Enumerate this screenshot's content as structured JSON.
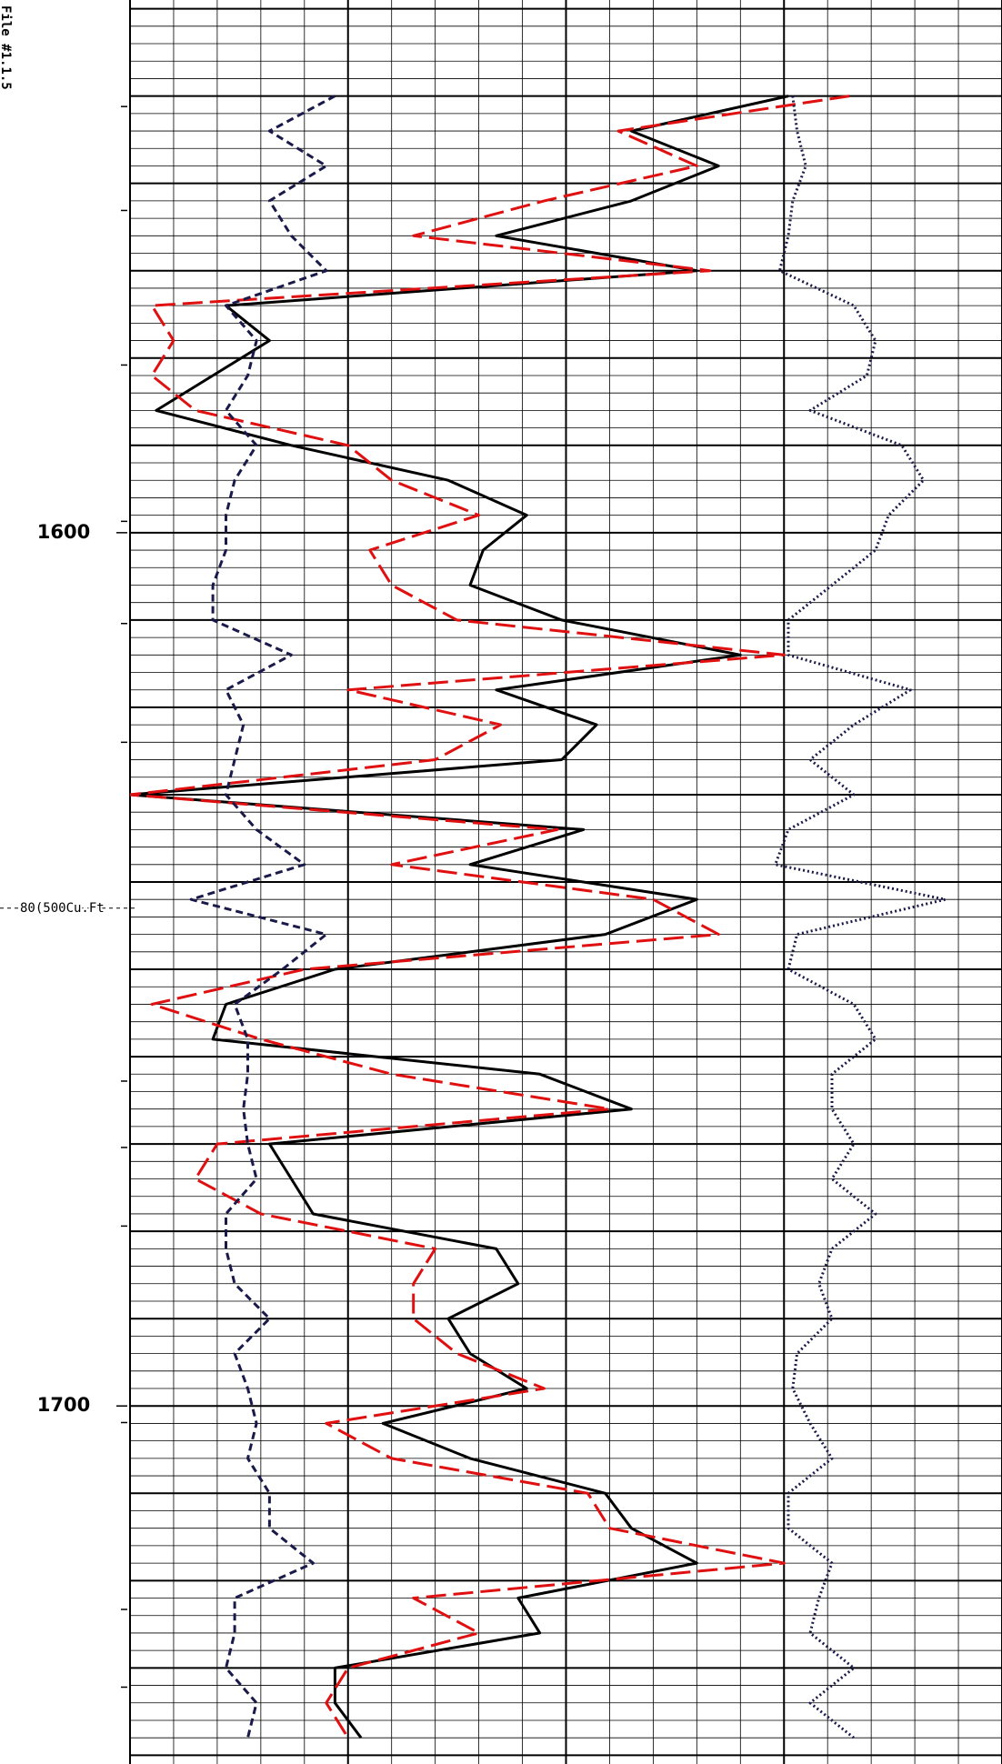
{
  "chart_data": {
    "type": "line",
    "title": "File #1.1.5",
    "ylim": [
      1539,
      1741
    ],
    "yticks": [
      1600,
      1700
    ],
    "xlim": [
      0,
      20
    ],
    "grid": true,
    "ygrid_minor": 2,
    "ygrid_major": 10,
    "xgrid_minor": 1,
    "xgrid_major": 5,
    "depth_marks": [
      1551.2,
      1563.1,
      1580.8,
      1598.7,
      1610.4,
      1624.0,
      1662.8,
      1670.4,
      1679.4,
      1701.9,
      1723.3,
      1732.2
    ],
    "annotation": {
      "text": "80(500Cu.Ft",
      "depth": 1643
    },
    "depth": [
      1550,
      1554,
      1558,
      1562,
      1566,
      1570,
      1574,
      1578,
      1582,
      1586,
      1590,
      1594,
      1598,
      1602,
      1606,
      1610,
      1614,
      1618,
      1622,
      1626,
      1630,
      1634,
      1638,
      1642,
      1646,
      1650,
      1654,
      1658,
      1662,
      1666,
      1670,
      1674,
      1678,
      1682,
      1686,
      1690,
      1694,
      1698,
      1702,
      1706,
      1710,
      1714,
      1718,
      1722,
      1726,
      1730,
      1734,
      1738
    ],
    "series": [
      {
        "color": "#000000",
        "style": "solid",
        "values": [
          15.1,
          11.5,
          13.5,
          11.5,
          8.4,
          13,
          2.2,
          3.2,
          1.9,
          0.6,
          3.7,
          7.3,
          9.1,
          8.1,
          7.8,
          9.9,
          14,
          8.4,
          10.7,
          9.9,
          0,
          10.4,
          7.8,
          13,
          10.9,
          4.7,
          2.2,
          1.9,
          9.4,
          11.5,
          3.2,
          3.7,
          4.2,
          8.4,
          8.9,
          7.3,
          7.8,
          9.1,
          5.8,
          7.8,
          10.9,
          11.5,
          13,
          8.9,
          9.4,
          4.7,
          4.7,
          5.3
        ]
      },
      {
        "color": "#e01010",
        "style": "dashed",
        "values": [
          16.5,
          11.2,
          13,
          9.5,
          6.5,
          13.3,
          0.5,
          1,
          0.5,
          1.5,
          5,
          6,
          8,
          5.5,
          6,
          7.5,
          15,
          5,
          8.5,
          7,
          0,
          9.8,
          6,
          12,
          13.5,
          4,
          0.5,
          3,
          6,
          11,
          2,
          1.5,
          3,
          7,
          6.5,
          6.5,
          7.5,
          9.5,
          4.5,
          6,
          10.5,
          11,
          15,
          6.5,
          8,
          5,
          4.5,
          5
        ]
      },
      {
        "color": "#1a1a4a",
        "style": "short-dash",
        "values": [
          4.7,
          3.2,
          4.5,
          3.2,
          3.7,
          4.5,
          2.2,
          2.9,
          2.7,
          2.2,
          2.9,
          2.4,
          2.2,
          2.2,
          1.9,
          1.9,
          3.7,
          2.2,
          2.6,
          2.4,
          2.2,
          2.9,
          4,
          1.4,
          4.5,
          3.5,
          2.4,
          2.7,
          2.7,
          2.6,
          2.7,
          2.9,
          2.2,
          2.2,
          2.4,
          3.2,
          2.4,
          2.7,
          2.9,
          2.7,
          3.2,
          3.2,
          4.2,
          2.4,
          2.4,
          2.2,
          2.9,
          2.7
        ]
      },
      {
        "color": "#1a1a4a",
        "style": "dotted",
        "values": [
          15.2,
          15.3,
          15.5,
          15.2,
          15.1,
          14.9,
          16.6,
          17.1,
          16.9,
          15.6,
          17.7,
          18.2,
          17.4,
          17.1,
          16.1,
          15.1,
          15.1,
          17.9,
          16.6,
          15.6,
          16.6,
          15.1,
          14.8,
          18.7,
          15.3,
          15.1,
          16.6,
          17.1,
          16.1,
          16.1,
          16.6,
          16.1,
          17.1,
          16.1,
          15.8,
          16.1,
          15.3,
          15.2,
          15.6,
          16.1,
          15.1,
          15.1,
          16.1,
          15.8,
          15.6,
          16.6,
          15.6,
          16.6
        ]
      }
    ]
  }
}
